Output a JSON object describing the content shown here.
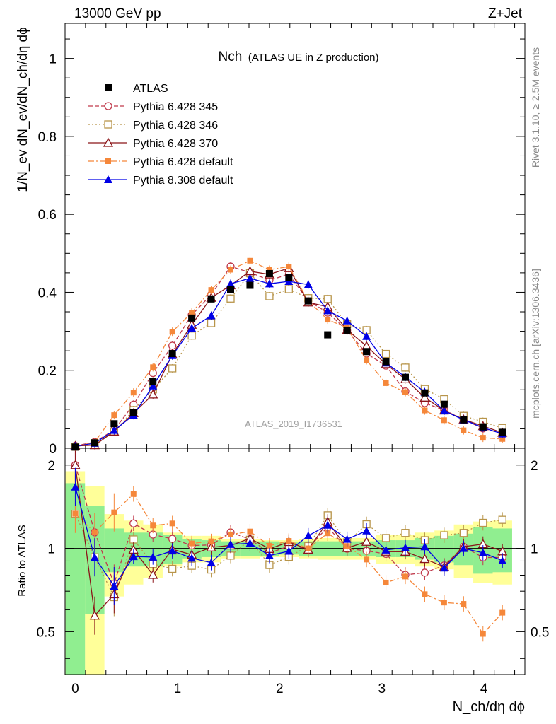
{
  "header": {
    "energy_label": "13000 GeV pp",
    "process_label": "Z+Jet"
  },
  "side": {
    "rivet_label": "Rivet 3.1.10, ≥ 2.5M events",
    "mcplots_label": "mcplots.cern.ch [arXiv:1306.3436]"
  },
  "chart_data": {
    "type": "scatter",
    "title": "Nch",
    "subtitle": "(ATLAS UE in Z production)",
    "analysis_label": "ATLAS_2019_I1736531",
    "xlabel": "N_ch/dη dϕ",
    "ylabel": "1/N_ev dN_ev/dN_ch/dη dϕ",
    "ratio_ylabel": "Ratio to ATLAS",
    "xlim": [
      -0.1,
      4.4
    ],
    "ylim": [
      0,
      1.09
    ],
    "ratio_ylim": [
      0.35,
      2.3
    ],
    "x_ticks": [
      "0",
      "1",
      "2",
      "3",
      "4"
    ],
    "y_ticks": [
      "0",
      "0.2",
      "0.4",
      "0.6",
      "0.8",
      "1"
    ],
    "ratio_ticks": [
      "0.5",
      "1",
      "2"
    ],
    "x": [
      0.0,
      0.19,
      0.38,
      0.57,
      0.76,
      0.95,
      1.14,
      1.33,
      1.52,
      1.71,
      1.9,
      2.09,
      2.28,
      2.47,
      2.66,
      2.85,
      3.04,
      3.23,
      3.42,
      3.61,
      3.8,
      3.99,
      4.18
    ],
    "data": {
      "name": "ATLAS",
      "values": [
        0.003,
        0.014,
        0.063,
        0.091,
        0.172,
        0.243,
        0.334,
        0.383,
        0.408,
        0.418,
        0.448,
        0.438,
        0.378,
        0.291,
        0.303,
        0.248,
        0.222,
        0.182,
        0.142,
        0.113,
        0.073,
        0.055,
        0.041
      ]
    },
    "series": [
      {
        "name": "Pythia 6.428 345",
        "values": [
          0.006,
          0.016,
          0.047,
          0.112,
          0.193,
          0.263,
          0.342,
          0.394,
          0.466,
          0.451,
          0.431,
          0.446,
          0.378,
          0.348,
          0.302,
          0.243,
          0.212,
          0.146,
          0.116,
          0.098,
          0.074,
          0.051,
          0.038
        ]
      },
      {
        "name": "Pythia 6.428 346",
        "values": [
          0.004,
          0.013,
          0.042,
          0.098,
          0.151,
          0.205,
          0.289,
          0.321,
          0.384,
          0.449,
          0.39,
          0.408,
          0.385,
          0.383,
          0.318,
          0.303,
          0.242,
          0.207,
          0.152,
          0.126,
          0.083,
          0.068,
          0.052
        ]
      },
      {
        "name": "Pythia 6.428 370",
        "values": [
          0.006,
          0.008,
          0.043,
          0.09,
          0.138,
          0.241,
          0.317,
          0.386,
          0.418,
          0.454,
          0.446,
          0.462,
          0.374,
          0.363,
          0.304,
          0.262,
          0.216,
          0.177,
          0.13,
          0.097,
          0.074,
          0.057,
          0.04
        ]
      },
      {
        "name": "Pythia 6.428 default",
        "values": [
          0.004,
          0.016,
          0.085,
          0.143,
          0.208,
          0.299,
          0.348,
          0.406,
          0.458,
          0.481,
          0.458,
          0.466,
          0.378,
          0.33,
          0.309,
          0.226,
          0.167,
          0.144,
          0.097,
          0.072,
          0.046,
          0.027,
          0.024
        ]
      },
      {
        "name": "Pythia 8.308 default",
        "values": [
          0.005,
          0.013,
          0.046,
          0.085,
          0.16,
          0.238,
          0.308,
          0.34,
          0.422,
          0.436,
          0.422,
          0.428,
          0.42,
          0.353,
          0.327,
          0.287,
          0.219,
          0.183,
          0.144,
          0.096,
          0.073,
          0.053,
          0.037
        ]
      }
    ],
    "ratio_band_data": {
      "name": "ATLAS uncertainty",
      "values": [
        0.72,
        0.42,
        0.18,
        0.14,
        0.14,
        0.12,
        0.08,
        0.07,
        0.06,
        0.06,
        0.06,
        0.05,
        0.06,
        0.06,
        0.06,
        0.06,
        0.07,
        0.07,
        0.09,
        0.11,
        0.13,
        0.19,
        0.18
      ]
    },
    "ratio_band_total": {
      "name": "ATLAS total",
      "values": [
        0.9,
        0.68,
        0.33,
        0.26,
        0.22,
        0.14,
        0.11,
        0.11,
        0.08,
        0.08,
        0.07,
        0.07,
        0.08,
        0.09,
        0.09,
        0.09,
        0.12,
        0.12,
        0.14,
        0.16,
        0.22,
        0.25,
        0.26
      ]
    },
    "colors": {
      "data": "#000000",
      "series": [
        "#c0394b",
        "#b8954a",
        "#8b1418",
        "#f5873a",
        "#0000e6"
      ],
      "band_inner": "#90ee90",
      "band_outer": "#ffff99"
    }
  }
}
